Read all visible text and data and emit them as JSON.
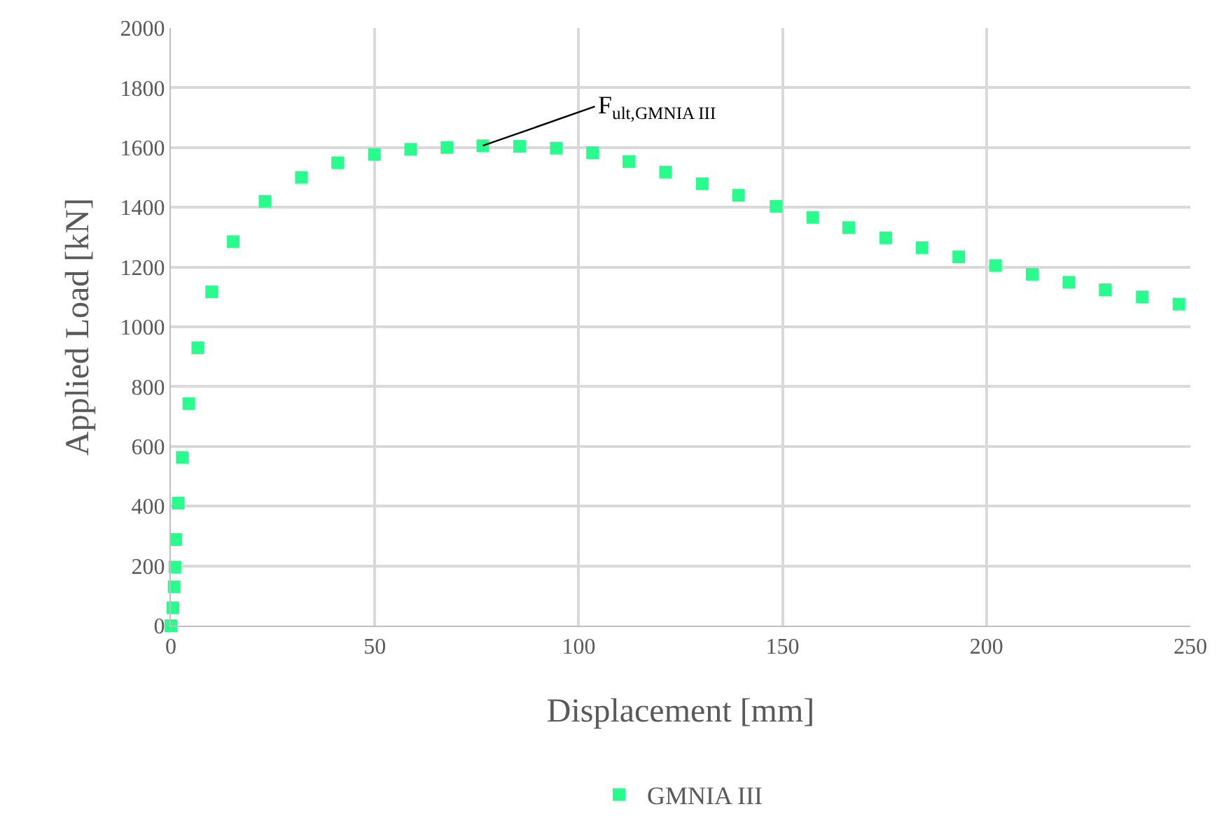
{
  "chart_data": {
    "type": "scatter",
    "xlabel": "Displacement [mm]",
    "ylabel": "Applied Load [kN]",
    "x": [
      0,
      0.5,
      0.8,
      1.0,
      1.2,
      1.8,
      2.8,
      4.4,
      6.6,
      10,
      15.3,
      23.1,
      32,
      40.9,
      49.9,
      58.8,
      67.7,
      76.5,
      85.5,
      94.5,
      103.4,
      112.3,
      121.3,
      130.3,
      139.2,
      148.4,
      157.4,
      166.2,
      175.3,
      184.2,
      193.2,
      202.2,
      211.2,
      220.2,
      229.1,
      238.2,
      247.2
    ],
    "series": [
      {
        "name": "GMNIA III",
        "color": "#27fc8c",
        "values": [
          0,
          60,
          130,
          196,
          288,
          410,
          563,
          743,
          930,
          1117,
          1285,
          1420,
          1500,
          1549,
          1577,
          1594,
          1600,
          1606,
          1604,
          1598,
          1583,
          1553,
          1518,
          1479,
          1440,
          1403,
          1366,
          1332,
          1298,
          1265,
          1234,
          1205,
          1176,
          1149,
          1124,
          1100,
          1076
        ]
      }
    ],
    "xlim": [
      0,
      250
    ],
    "xticks": [
      0,
      50,
      100,
      150,
      200,
      250
    ],
    "ylim": [
      0,
      2000
    ],
    "yticks": [
      0,
      200,
      400,
      600,
      800,
      1000,
      1200,
      1400,
      1600,
      1800,
      2000
    ],
    "grid": true,
    "legend": "bottom",
    "marker": "square",
    "annotations": [
      {
        "text": "F$_{ult,GMNIA III}$",
        "x": 76.5,
        "y": 1606
      }
    ]
  }
}
